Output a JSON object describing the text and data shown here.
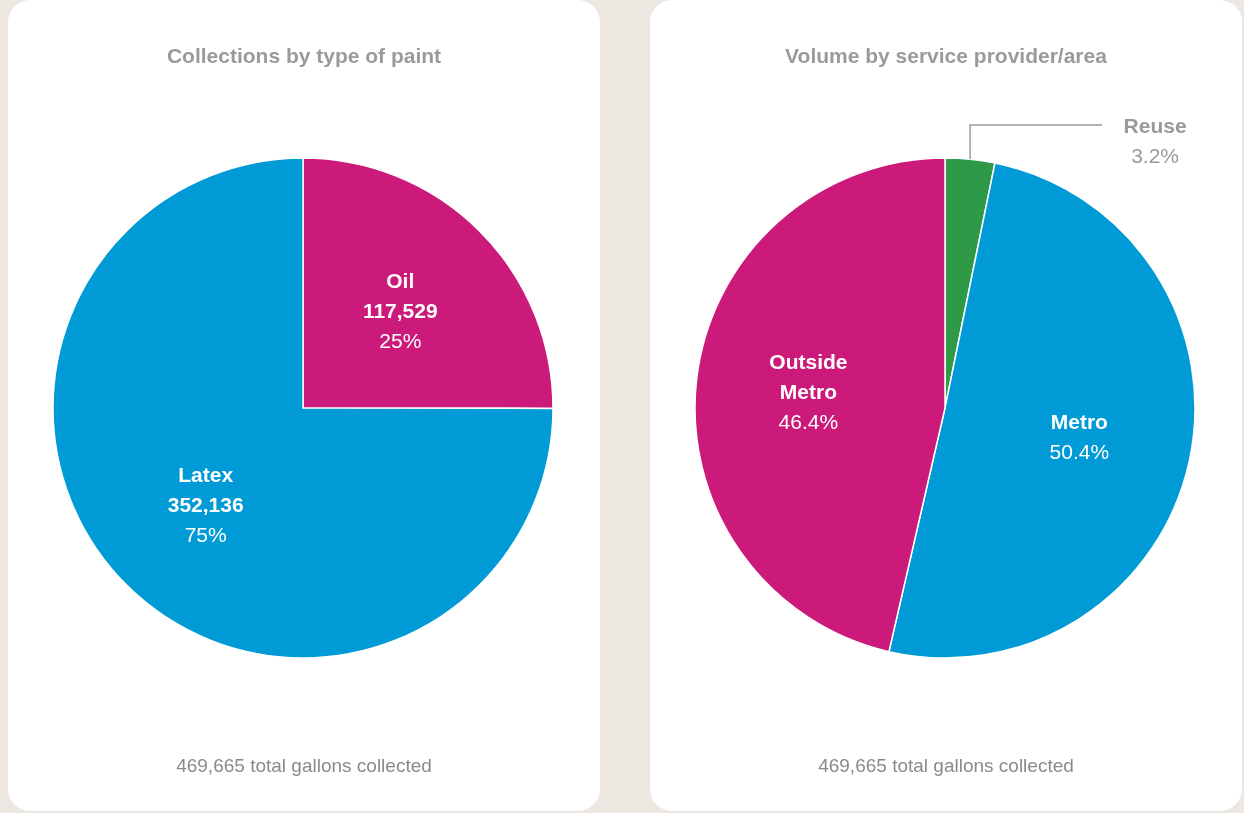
{
  "chart_data": [
    {
      "type": "pie",
      "title": "Collections by type of paint",
      "categories": [
        "Oil",
        "Latex"
      ],
      "values": [
        117529,
        352136
      ],
      "colors": [
        "#cc1a7a",
        "#009bd6"
      ],
      "value_labels": [
        "117,529\n25%",
        "352,136\n75%"
      ],
      "annotations": [
        "469,665 total gallons collected"
      ]
    },
    {
      "type": "pie",
      "title": "Volume by service provider/area",
      "categories": [
        "Reuse",
        "Metro",
        "Outside Metro"
      ],
      "values": [
        3.2,
        50.4,
        46.4
      ],
      "colors": [
        "#2e9a48",
        "#009bd6",
        "#cc1a7a"
      ],
      "value_labels": [
        "3.2%",
        "50.4%",
        "46.4%"
      ],
      "annotations": [
        "469,665 total gallons collected"
      ]
    }
  ]
}
